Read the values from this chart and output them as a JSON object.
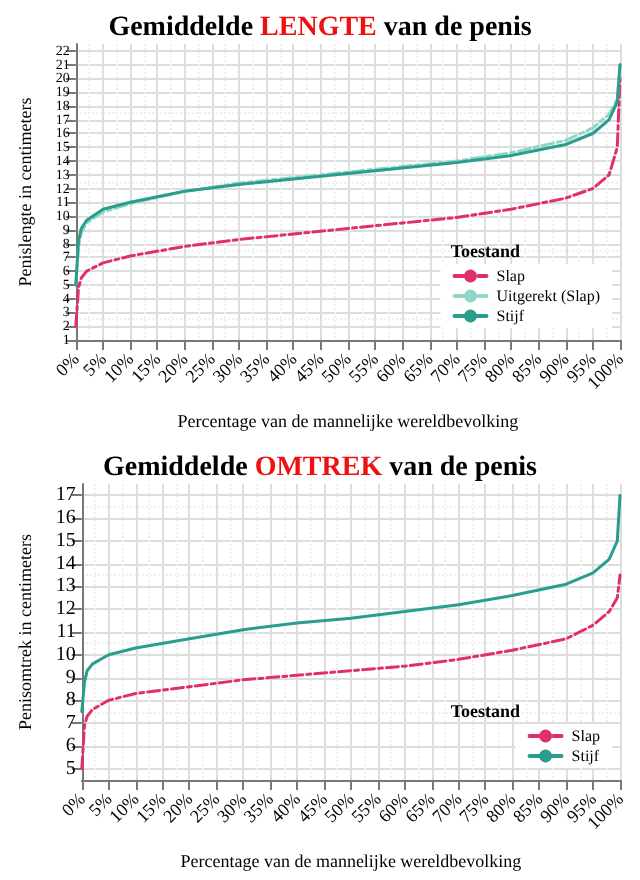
{
  "chart_data": [
    {
      "type": "line",
      "title": "Gemiddelde LENGTE van de penis",
      "xlabel": "Percentage van de mannelijke wereldbevolking",
      "ylabel": "Penislengte in centimeters",
      "legend_title": "Toestand",
      "legend": "bottom right",
      "grid": true,
      "marker": "none",
      "xlim": [
        0,
        100
      ],
      "ylim": [
        1,
        22.5
      ],
      "xticks": [
        {
          "value": 0,
          "label": "0%"
        },
        {
          "value": 5,
          "label": "5%"
        },
        {
          "value": 10,
          "label": "10%"
        },
        {
          "value": 15,
          "label": "15%"
        },
        {
          "value": 20,
          "label": "20%"
        },
        {
          "value": 25,
          "label": "25%"
        },
        {
          "value": 30,
          "label": "30%"
        },
        {
          "value": 35,
          "label": "35%"
        },
        {
          "value": 40,
          "label": "40%"
        },
        {
          "value": 45,
          "label": "45%"
        },
        {
          "value": 50,
          "label": "50%"
        },
        {
          "value": 55,
          "label": "55%"
        },
        {
          "value": 60,
          "label": "60%"
        },
        {
          "value": 65,
          "label": "65%"
        },
        {
          "value": 70,
          "label": "70%"
        },
        {
          "value": 75,
          "label": "75%"
        },
        {
          "value": 80,
          "label": "80%"
        },
        {
          "value": 85,
          "label": "85%"
        },
        {
          "value": 90,
          "label": "90%"
        },
        {
          "value": 95,
          "label": "95%"
        },
        {
          "value": 100,
          "label": "100%"
        }
      ],
      "yticks": [
        1,
        2,
        3,
        4,
        5,
        6,
        7,
        8,
        9,
        10,
        11,
        12,
        13,
        14,
        15,
        16,
        17,
        18,
        19,
        20,
        21,
        22
      ],
      "x": [
        0,
        0.5,
        1,
        2,
        5,
        10,
        20,
        30,
        40,
        50,
        60,
        70,
        80,
        90,
        95,
        98,
        99.5,
        100
      ],
      "series": [
        {
          "name": "Slap",
          "color": "#e0306a",
          "line_style": "dashed",
          "values": [
            2,
            4.8,
            5.5,
            6,
            6.6,
            7.1,
            7.8,
            8.3,
            8.7,
            9.1,
            9.5,
            9.9,
            10.5,
            11.3,
            12,
            13,
            15,
            20
          ]
        },
        {
          "name": "Uitgerekt (Slap)",
          "color": "#8fd6c8",
          "line_style": "dashed",
          "values": [
            5,
            7.8,
            8.8,
            9.5,
            10.3,
            10.9,
            11.8,
            12.4,
            12.8,
            13.2,
            13.6,
            14,
            14.6,
            15.5,
            16.4,
            17.4,
            18.5,
            21
          ]
        },
        {
          "name": "Stijf",
          "color": "#2a9d8f",
          "line_style": "solid",
          "values": [
            5,
            8.2,
            9.1,
            9.7,
            10.5,
            11,
            11.8,
            12.3,
            12.7,
            13.1,
            13.5,
            13.9,
            14.4,
            15.2,
            16,
            17,
            18.3,
            21
          ]
        }
      ]
    },
    {
      "type": "line",
      "title": "Gemiddelde OMTREK van de penis",
      "xlabel": "Percentage van de mannelijke wereldbevolking",
      "ylabel": "Penisomtrek in centimeters",
      "legend_title": "Toestand",
      "legend": "bottom right",
      "grid": true,
      "marker": "none",
      "xlim": [
        0,
        100
      ],
      "ylim": [
        4.5,
        17.5
      ],
      "xticks": [
        {
          "value": 0,
          "label": "0%"
        },
        {
          "value": 5,
          "label": "5%"
        },
        {
          "value": 10,
          "label": "10%"
        },
        {
          "value": 15,
          "label": "15%"
        },
        {
          "value": 20,
          "label": "20%"
        },
        {
          "value": 25,
          "label": "25%"
        },
        {
          "value": 30,
          "label": "30%"
        },
        {
          "value": 35,
          "label": "35%"
        },
        {
          "value": 40,
          "label": "40%"
        },
        {
          "value": 45,
          "label": "45%"
        },
        {
          "value": 50,
          "label": "50%"
        },
        {
          "value": 55,
          "label": "55%"
        },
        {
          "value": 60,
          "label": "60%"
        },
        {
          "value": 65,
          "label": "65%"
        },
        {
          "value": 70,
          "label": "70%"
        },
        {
          "value": 75,
          "label": "75%"
        },
        {
          "value": 80,
          "label": "80%"
        },
        {
          "value": 85,
          "label": "85%"
        },
        {
          "value": 90,
          "label": "90%"
        },
        {
          "value": 95,
          "label": "95%"
        },
        {
          "value": 100,
          "label": "100%"
        }
      ],
      "yticks": [
        5,
        6,
        7,
        8,
        9,
        10,
        11,
        12,
        13,
        14,
        15,
        16,
        17
      ],
      "x": [
        0,
        0.5,
        1,
        2,
        5,
        10,
        20,
        30,
        40,
        50,
        60,
        70,
        80,
        90,
        95,
        98,
        99.5,
        100
      ],
      "series": [
        {
          "name": "Slap",
          "color": "#e0306a",
          "line_style": "dashed",
          "values": [
            5,
            6.9,
            7.3,
            7.6,
            8,
            8.3,
            8.6,
            8.9,
            9.1,
            9.3,
            9.5,
            9.8,
            10.2,
            10.7,
            11.3,
            11.9,
            12.5,
            13.5
          ]
        },
        {
          "name": "Stijf",
          "color": "#2a9d8f",
          "line_style": "solid",
          "values": [
            7.5,
            8.8,
            9.3,
            9.6,
            10,
            10.3,
            10.7,
            11.1,
            11.4,
            11.6,
            11.9,
            12.2,
            12.6,
            13.1,
            13.6,
            14.2,
            15,
            17
          ]
        }
      ]
    }
  ]
}
